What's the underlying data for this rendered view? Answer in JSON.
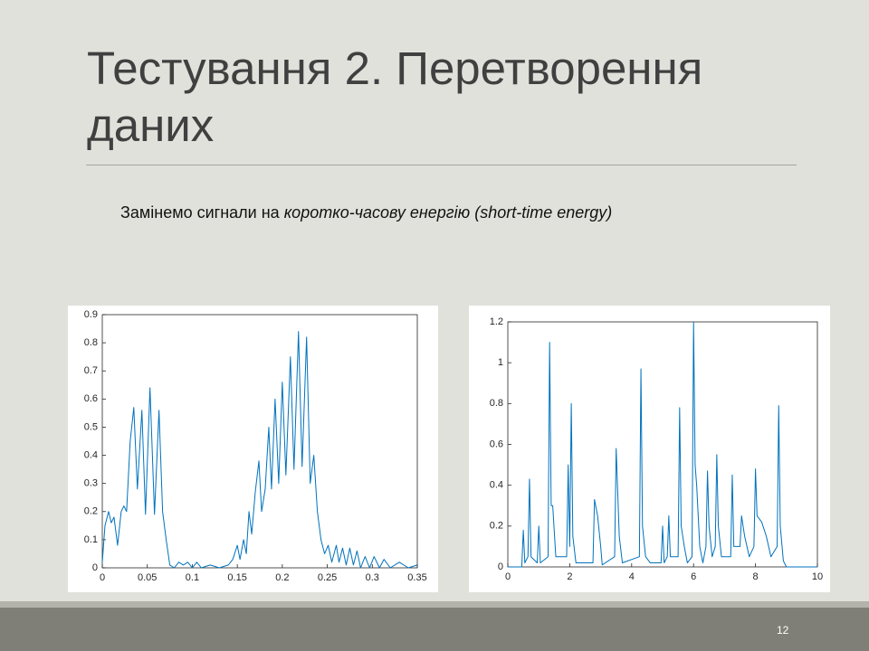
{
  "slide": {
    "title": "Тестування 2. Перетворення даних",
    "text": [
      "Замінемо сигнали на ",
      "коротко-часову енергію (short-time energy)"
    ],
    "page_number": "12"
  },
  "chart_data": [
    {
      "type": "line",
      "color": "#0072bd",
      "x": [
        0,
        0.003,
        0.007,
        0.01,
        0.013,
        0.017,
        0.021,
        0.024,
        0.027,
        0.031,
        0.035,
        0.039,
        0.044,
        0.048,
        0.053,
        0.058,
        0.063,
        0.067,
        0.071,
        0.075,
        0.08,
        0.085,
        0.09,
        0.095,
        0.1,
        0.105,
        0.11,
        0.12,
        0.13,
        0.14,
        0.145,
        0.15,
        0.153,
        0.157,
        0.16,
        0.163,
        0.166,
        0.17,
        0.174,
        0.177,
        0.181,
        0.185,
        0.188,
        0.192,
        0.196,
        0.2,
        0.204,
        0.209,
        0.213,
        0.218,
        0.222,
        0.227,
        0.231,
        0.235,
        0.239,
        0.243,
        0.247,
        0.251,
        0.255,
        0.26,
        0.263,
        0.267,
        0.271,
        0.275,
        0.279,
        0.283,
        0.287,
        0.292,
        0.297,
        0.302,
        0.308,
        0.313,
        0.32,
        0.33,
        0.34,
        0.35
      ],
      "values": [
        0.02,
        0.15,
        0.2,
        0.16,
        0.18,
        0.08,
        0.2,
        0.22,
        0.2,
        0.45,
        0.57,
        0.28,
        0.56,
        0.19,
        0.64,
        0.19,
        0.56,
        0.2,
        0.1,
        0.01,
        0.0,
        0.02,
        0.01,
        0.02,
        0.0,
        0.02,
        0.0,
        0.01,
        0.0,
        0.01,
        0.03,
        0.08,
        0.03,
        0.1,
        0.05,
        0.2,
        0.12,
        0.27,
        0.38,
        0.2,
        0.28,
        0.5,
        0.28,
        0.6,
        0.3,
        0.66,
        0.33,
        0.75,
        0.35,
        0.84,
        0.36,
        0.82,
        0.3,
        0.4,
        0.2,
        0.1,
        0.05,
        0.08,
        0.02,
        0.08,
        0.02,
        0.07,
        0.01,
        0.07,
        0.01,
        0.06,
        0.0,
        0.04,
        0.0,
        0.04,
        0.0,
        0.03,
        0.0,
        0.02,
        0.0,
        0.01
      ],
      "xlim": [
        0,
        0.35
      ],
      "xticks": [
        0,
        0.05,
        0.1,
        0.15,
        0.2,
        0.25,
        0.3,
        0.35
      ],
      "ylim": [
        0,
        0.9
      ],
      "yticks": [
        0,
        0.1,
        0.2,
        0.3,
        0.4,
        0.5,
        0.6,
        0.7,
        0.8,
        0.9
      ]
    },
    {
      "type": "line",
      "color": "#0072bd",
      "x": [
        0,
        0.45,
        0.5,
        0.55,
        0.65,
        0.7,
        0.75,
        0.95,
        1.0,
        1.05,
        1.3,
        1.35,
        1.4,
        1.45,
        1.55,
        1.9,
        1.95,
        2.0,
        2.05,
        2.1,
        2.2,
        2.75,
        2.8,
        2.9,
        3.0,
        3.05,
        3.45,
        3.5,
        3.6,
        3.7,
        4.25,
        4.3,
        4.35,
        4.45,
        4.6,
        4.95,
        5.0,
        5.05,
        5.15,
        5.2,
        5.25,
        5.5,
        5.55,
        5.6,
        5.7,
        5.8,
        5.95,
        6.0,
        6.05,
        6.1,
        6.2,
        6.3,
        6.4,
        6.45,
        6.5,
        6.6,
        6.7,
        6.75,
        6.8,
        6.9,
        7.2,
        7.25,
        7.3,
        7.5,
        7.55,
        7.65,
        7.8,
        7.95,
        8.0,
        8.05,
        8.2,
        8.35,
        8.5,
        8.7,
        8.75,
        8.8,
        8.9,
        9.0,
        10
      ],
      "values": [
        0,
        0,
        0.18,
        0.02,
        0.05,
        0.43,
        0.05,
        0.02,
        0.2,
        0.02,
        0.05,
        1.1,
        0.3,
        0.3,
        0.05,
        0.05,
        0.5,
        0.1,
        0.8,
        0.15,
        0.02,
        0.02,
        0.33,
        0.25,
        0.1,
        0.01,
        0.05,
        0.58,
        0.15,
        0.02,
        0.05,
        0.97,
        0.2,
        0.05,
        0.02,
        0.02,
        0.2,
        0.02,
        0.05,
        0.25,
        0.05,
        0.05,
        0.78,
        0.2,
        0.1,
        0.02,
        0.05,
        1.2,
        0.5,
        0.4,
        0.1,
        0.02,
        0.1,
        0.47,
        0.2,
        0.05,
        0.1,
        0.55,
        0.2,
        0.05,
        0.05,
        0.45,
        0.1,
        0.1,
        0.25,
        0.15,
        0.05,
        0.1,
        0.48,
        0.25,
        0.22,
        0.15,
        0.05,
        0.1,
        0.79,
        0.2,
        0.03,
        0,
        0
      ],
      "xlim": [
        0,
        10
      ],
      "xticks": [
        0,
        2,
        4,
        6,
        8,
        10
      ],
      "ylim": [
        0,
        1.2
      ],
      "yticks": [
        0,
        0.2,
        0.4,
        0.6,
        0.8,
        1,
        1.2
      ]
    }
  ]
}
